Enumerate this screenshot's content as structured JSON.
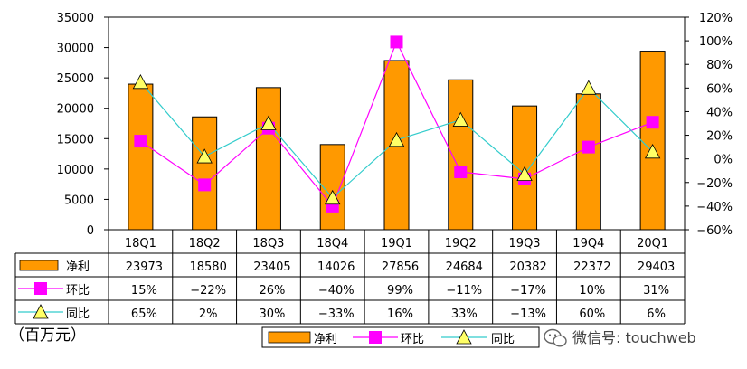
{
  "chart_data": {
    "type": "bar",
    "categories": [
      "18Q1",
      "18Q2",
      "18Q3",
      "18Q4",
      "19Q1",
      "19Q2",
      "19Q3",
      "19Q4",
      "20Q1"
    ],
    "series": [
      {
        "name": "净利",
        "kind": "bar",
        "axis": "left",
        "color": "#FF9900",
        "values": [
          23973,
          18580,
          23405,
          14026,
          27856,
          24684,
          20382,
          22372,
          29403
        ],
        "labels": [
          "23973",
          "18580",
          "23405",
          "14026",
          "27856",
          "24684",
          "20382",
          "22372",
          "29403"
        ]
      },
      {
        "name": "环比",
        "kind": "line",
        "axis": "right",
        "color": "#FF00FF",
        "marker": "square",
        "values": [
          15,
          -22,
          26,
          -40,
          99,
          -11,
          -17,
          10,
          31
        ],
        "labels": [
          "15%",
          "−22%",
          "26%",
          "−40%",
          "99%",
          "−11%",
          "−17%",
          "10%",
          "31%"
        ]
      },
      {
        "name": "同比",
        "kind": "line",
        "axis": "right",
        "color": "#33CCCC",
        "marker": "triangle",
        "marker_fill": "#FFFF66",
        "values": [
          65,
          2,
          30,
          -33,
          16,
          33,
          -13,
          60,
          6
        ],
        "labels": [
          "65%",
          "2%",
          "30%",
          "−33%",
          "16%",
          "33%",
          "−13%",
          "60%",
          "6%"
        ]
      }
    ],
    "y_left": {
      "min": 0,
      "max": 35000,
      "step": 5000,
      "ticks": [
        "0",
        "5000",
        "10000",
        "15000",
        "20000",
        "25000",
        "30000",
        "35000"
      ]
    },
    "y_right": {
      "min": -60,
      "max": 120,
      "step": 20,
      "ticks": [
        "−60%",
        "−40%",
        "−20%",
        "0%",
        "20%",
        "40%",
        "60%",
        "80%",
        "100%",
        "120%"
      ]
    },
    "unit_label": "（百万元）",
    "legend_position": "bottom",
    "watermark": "微信号: touchweb"
  }
}
